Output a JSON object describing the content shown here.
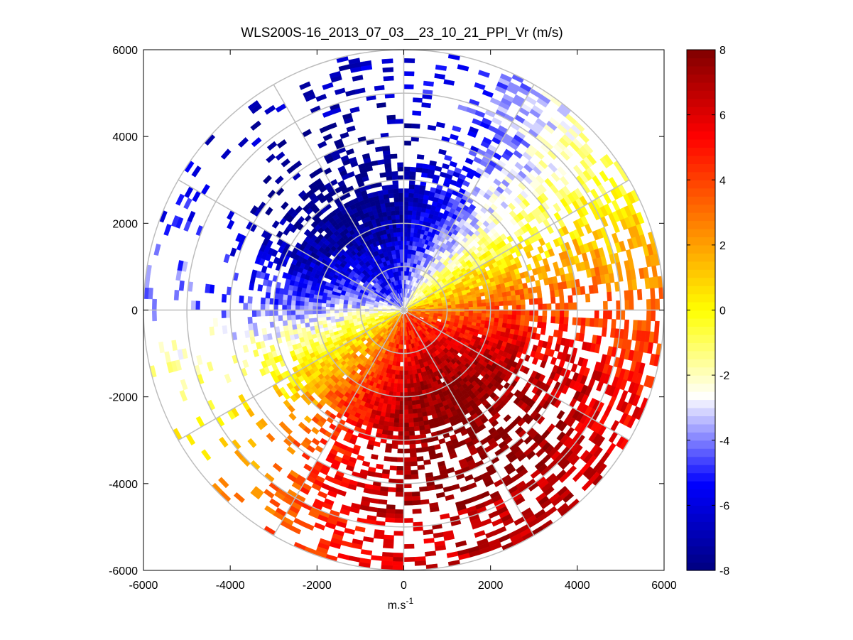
{
  "chart_data": {
    "type": "heatmap",
    "subtype": "polar-ppi",
    "title": "WLS200S-16_2013_07_03__23_10_21_PPI_Vr (m/s)",
    "xlabel_base": "m.s",
    "xlabel_sup": "-1",
    "ylabel": "",
    "xlim": [
      -6000,
      6000
    ],
    "ylim": [
      -6000,
      6000
    ],
    "x_ticks": [
      -6000,
      -4000,
      -2000,
      0,
      2000,
      4000,
      6000
    ],
    "y_ticks": [
      6000,
      4000,
      2000,
      0,
      -2000,
      -4000,
      -6000
    ],
    "x_tick_labels": [
      "-6000",
      "-4000",
      "-2000",
      "0",
      "2000",
      "4000",
      "6000"
    ],
    "y_tick_labels": [
      "6000",
      "4000",
      "2000",
      "0",
      "-2000",
      "-4000",
      "-6000"
    ],
    "range_rings_m": [
      1000,
      2000,
      3000,
      4000,
      5000,
      6000
    ],
    "radial_lines_deg": [
      0,
      30,
      60,
      90,
      120,
      150,
      180,
      210,
      240,
      270,
      300,
      330
    ],
    "max_range_m": 6000,
    "colorbar": {
      "min": -8,
      "max": 8,
      "ticks": [
        8,
        6,
        4,
        2,
        0,
        -2,
        -4,
        -6,
        -8
      ],
      "tick_labels": [
        "8",
        "6",
        "4",
        "2",
        "0",
        "-2",
        "-4",
        "-6",
        "-8"
      ],
      "colormap": [
        "#000080",
        "#0000ff",
        "#ffffff",
        "#ffff00",
        "#ff8000",
        "#ff0000",
        "#800000"
      ]
    },
    "field_description": "Radial wind velocity; approaching (negative, blue) to the west/north-west, receding (positive, red) to the south-east, sparse returns beyond ~3500 m"
  }
}
